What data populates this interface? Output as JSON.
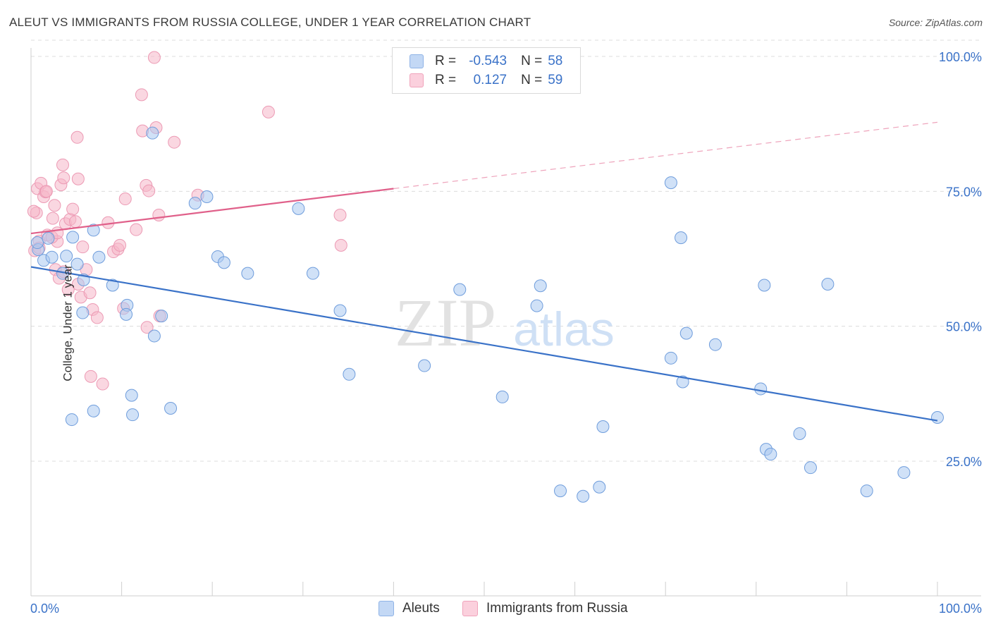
{
  "title": "ALEUT VS IMMIGRANTS FROM RUSSIA COLLEGE, UNDER 1 YEAR CORRELATION CHART",
  "source": "Source: ZipAtlas.com",
  "watermark": {
    "zip": "ZIP",
    "atlas": "atlas"
  },
  "legend": {
    "r_label": "R =",
    "n_label": "N =",
    "rows": [
      {
        "r": "-0.543",
        "n": "58",
        "color": "#aac8f0"
      },
      {
        "r": "0.127",
        "n": "59",
        "color": "#f5b6c9"
      }
    ]
  },
  "bottom_legend": [
    {
      "label": "Aleuts",
      "color": "#aac8f0"
    },
    {
      "label": "Immigrants from Russia",
      "color": "#f5b6c9"
    }
  ],
  "chart_data": {
    "type": "scatter",
    "title": "ALEUT VS IMMIGRANTS FROM RUSSIA COLLEGE, UNDER 1 YEAR CORRELATION CHART",
    "xlabel": "",
    "ylabel": "College, Under 1 year",
    "xlim": [
      0,
      100
    ],
    "ylim": [
      0,
      103
    ],
    "x_tick_labels": [
      "0.0%",
      "100.0%"
    ],
    "y_tick_labels": [
      "25.0%",
      "50.0%",
      "75.0%",
      "100.0%"
    ],
    "y_ticks": [
      25,
      50,
      75,
      100
    ],
    "grid": true,
    "colors": {
      "aleuts": "#3a72c8",
      "russia": "#e0608a",
      "aleuts_fill": "#aac8f0",
      "russia_fill": "#f5b6c9",
      "axis_label": "#3a72c8"
    },
    "series": [
      {
        "name": "Aleuts",
        "trend": {
          "x": [
            0,
            100
          ],
          "y": [
            61,
            32.5
          ]
        },
        "points": [
          [
            0.8,
            64.2
          ],
          [
            1.4,
            62.2
          ],
          [
            2.3,
            62.8
          ],
          [
            3.5,
            59.8
          ],
          [
            3.9,
            63
          ],
          [
            4.6,
            66.5
          ],
          [
            5.1,
            61.5
          ],
          [
            5.8,
            58.6
          ],
          [
            6.9,
            67.8
          ],
          [
            7.5,
            62.8
          ],
          [
            9,
            57.6
          ],
          [
            10.6,
            53.9
          ],
          [
            11.1,
            37.2
          ],
          [
            11.2,
            33.6
          ],
          [
            13.6,
            48.2
          ],
          [
            13.4,
            85.8
          ],
          [
            14.4,
            51.9
          ],
          [
            15.4,
            34.8
          ],
          [
            18.1,
            72.8
          ],
          [
            19.4,
            74
          ],
          [
            20.6,
            62.9
          ],
          [
            21.3,
            61.8
          ],
          [
            23.9,
            59.8
          ],
          [
            29.5,
            71.8
          ],
          [
            31.1,
            59.8
          ],
          [
            34.1,
            52.9
          ],
          [
            35.1,
            41.1
          ],
          [
            4.5,
            32.7
          ],
          [
            6.9,
            34.3
          ],
          [
            5.7,
            52.5
          ],
          [
            43.4,
            42.7
          ],
          [
            47.3,
            56.8
          ],
          [
            52,
            36.9
          ],
          [
            55.8,
            53.8
          ],
          [
            56.2,
            57.5
          ],
          [
            58.4,
            19.5
          ],
          [
            60.9,
            18.5
          ],
          [
            62.7,
            20.2
          ],
          [
            63.1,
            31.4
          ],
          [
            70.6,
            44.1
          ],
          [
            70.6,
            76.6
          ],
          [
            71.7,
            66.4
          ],
          [
            71.9,
            39.7
          ],
          [
            72.3,
            48.7
          ],
          [
            75.5,
            46.6
          ],
          [
            80.5,
            38.4
          ],
          [
            80.9,
            57.6
          ],
          [
            81.1,
            27.2
          ],
          [
            81.6,
            26.3
          ],
          [
            84.8,
            30.1
          ],
          [
            86,
            23.8
          ],
          [
            87.9,
            57.8
          ],
          [
            92.2,
            19.5
          ],
          [
            96.3,
            22.9
          ],
          [
            100,
            33.1
          ],
          [
            0.7,
            65.5
          ],
          [
            1.9,
            66.3
          ],
          [
            10.5,
            52.2
          ]
        ]
      },
      {
        "name": "Immigrants from Russia",
        "trend": {
          "x": [
            0,
            40
          ],
          "y": [
            67.2,
            75.5
          ]
        },
        "trend_dashed": {
          "x": [
            40,
            100
          ],
          "y": [
            75.5,
            87.8
          ]
        },
        "points": [
          [
            0.4,
            64
          ],
          [
            0.6,
            71
          ],
          [
            0.7,
            75.5
          ],
          [
            0.9,
            65.8
          ],
          [
            1.1,
            76.5
          ],
          [
            1.4,
            74
          ],
          [
            1.6,
            74.9
          ],
          [
            1.8,
            66.9
          ],
          [
            2.4,
            70
          ],
          [
            2.6,
            72.4
          ],
          [
            2.7,
            60.5
          ],
          [
            2.9,
            65.7
          ],
          [
            3.1,
            58.9
          ],
          [
            3.3,
            76.2
          ],
          [
            3.5,
            79.9
          ],
          [
            3.6,
            77.5
          ],
          [
            3.8,
            69
          ],
          [
            4.1,
            56.8
          ],
          [
            4.3,
            69.8
          ],
          [
            4.6,
            71.7
          ],
          [
            5.1,
            85
          ],
          [
            5.2,
            77.3
          ],
          [
            5.5,
            55.4
          ],
          [
            5.7,
            64.7
          ],
          [
            6.1,
            60.5
          ],
          [
            6.5,
            56.2
          ],
          [
            6.6,
            40.7
          ],
          [
            6.8,
            53.1
          ],
          [
            7.3,
            51.6
          ],
          [
            7.9,
            39.3
          ],
          [
            8.5,
            69.2
          ],
          [
            9.1,
            63.8
          ],
          [
            9.6,
            64.3
          ],
          [
            9.8,
            65
          ],
          [
            10.2,
            53.3
          ],
          [
            10.4,
            73.6
          ],
          [
            11.6,
            67.9
          ],
          [
            12.2,
            92.9
          ],
          [
            12.3,
            86.2
          ],
          [
            12.7,
            76.1
          ],
          [
            12.8,
            49.8
          ],
          [
            13,
            75.1
          ],
          [
            13.6,
            99.8
          ],
          [
            13.8,
            86.8
          ],
          [
            14.1,
            70.6
          ],
          [
            14.2,
            51.9
          ],
          [
            15.8,
            84.1
          ],
          [
            18.4,
            74.3
          ],
          [
            26.2,
            89.7
          ],
          [
            34.1,
            70.6
          ],
          [
            34.2,
            65
          ],
          [
            0.3,
            71.3
          ],
          [
            0.9,
            64.5
          ],
          [
            1.7,
            75
          ],
          [
            2.3,
            66.5
          ],
          [
            2.9,
            67.3
          ],
          [
            3.6,
            60.1
          ],
          [
            4.9,
            69.4
          ],
          [
            5.2,
            57.8
          ]
        ]
      }
    ]
  }
}
